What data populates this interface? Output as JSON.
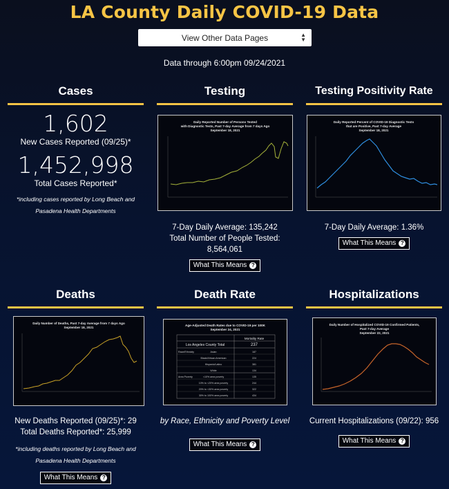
{
  "header": {
    "title": "LA County Daily COVID-19 Data",
    "dropdown_label": "View Other Data Pages",
    "data_through": "Data through 6:00pm 09/24/2021"
  },
  "cases": {
    "title": "Cases",
    "new_count": "1,602",
    "new_label": "New Cases Reported (09/25)*",
    "total_count": "1,452,998",
    "total_label": "Total Cases Reported*",
    "note": "*including cases reported by Long Beach and Pasadena Health Departments"
  },
  "testing": {
    "title": "Testing",
    "chart_title_1": "Daily Reported Number of Persons Tested",
    "chart_title_2": "with Diagnostic Tests, Past 7-day Average from 7 days Ago",
    "chart_title_3": "September 18, 2021",
    "avg": "7-Day Daily Average: 135,242",
    "total": "Total Number of People Tested: 8,564,061",
    "button": "What This Means"
  },
  "positivity": {
    "title": "Testing Positivity Rate",
    "chart_title_1": "Daily Reported Percent of COVID-19 Diagnostic Tests",
    "chart_title_2": "that are Positive, Past 7-day Average",
    "chart_title_3": "September 18, 2021",
    "avg": "7-Day Daily Average: 1.36%",
    "button": "What This Means"
  },
  "deaths": {
    "title": "Deaths",
    "chart_title_1": "Daily Number of Deaths, Past 7-day Average from 7 days Ago",
    "chart_title_2": "September 18, 2021",
    "new": "New Deaths Reported (09/25)*: 29",
    "total": "Total Deaths Reported*: 25,999",
    "note": "*including deaths reported by Long Beach and Pasadena Health Departments",
    "button": "What This Means"
  },
  "death_rate": {
    "title": "Death Rate",
    "table_title_1": "Age-Adjusted Death Rates due to COVID-19 per 100K",
    "table_title_2": "September 24, 2021",
    "col_header": "Mortality Rate",
    "county_label": "Los Angeles County Total",
    "county_value": "237",
    "rows": [
      {
        "group": "Race/Ethnicity",
        "label": "Asian",
        "value": "187"
      },
      {
        "group": "",
        "label": "Black/African American",
        "value": "224"
      },
      {
        "group": "",
        "label": "Hispanic/Latino",
        "value": "381"
      },
      {
        "group": "",
        "label": "White",
        "value": "134"
      },
      {
        "group": "Area Poverty",
        "label": "<10% area poverty",
        "value": "135"
      },
      {
        "group": "",
        "label": "10% to <20% area poverty",
        "value": "244"
      },
      {
        "group": "",
        "label": "20% to <30% area poverty",
        "value": "322"
      },
      {
        "group": "",
        "label": "30% to 100% area poverty",
        "value": "434"
      }
    ],
    "caption": "by Race, Ethnicity and Poverty Level",
    "button": "What This Means"
  },
  "hospitalizations": {
    "title": "Hospitalizations",
    "chart_title_1": "Daily Number of Hospitalized COVID-19 Confirmed Patients,",
    "chart_title_2": "Past 7-day Average",
    "chart_title_3": "September 22, 2021",
    "current": "Current Hospitalizations (09/22): 956",
    "button": "What This Means"
  },
  "colors": {
    "accent": "#f6c445",
    "testing_line": "#a6b33a",
    "positivity_line": "#2f8ee0",
    "deaths_line": "#c9a227",
    "hosp_line": "#c8652a"
  }
}
